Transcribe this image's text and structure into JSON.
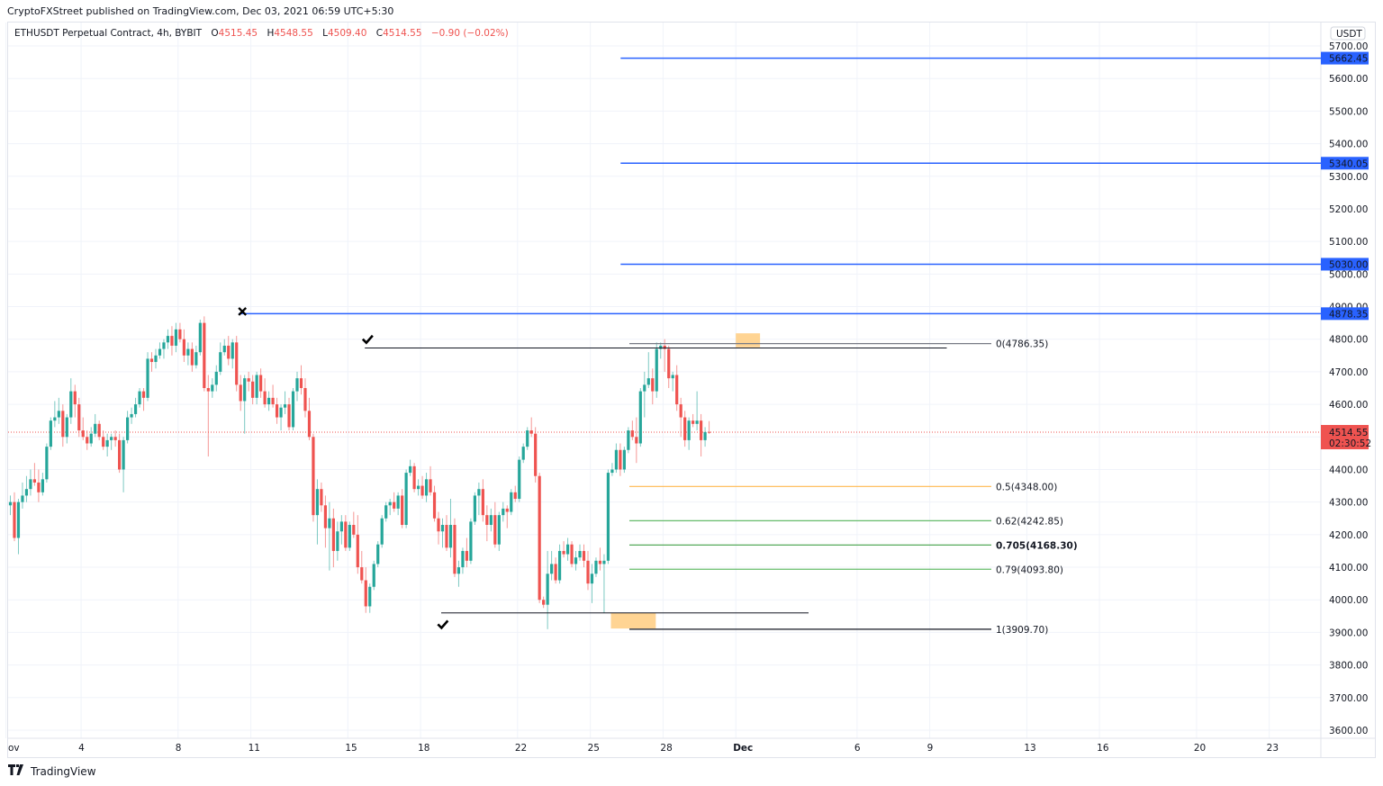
{
  "header": {
    "published": "CryptoFXStreet published on TradingView.com, Dec 03, 2021 06:59 UTC+5:30"
  },
  "legend": {
    "symbol": "ETHUSDT Perpetual Contract, 4h, BYBIT",
    "o_label": "O",
    "o": "4515.45",
    "h_label": "H",
    "h": "4548.55",
    "l_label": "L",
    "l": "4509.40",
    "c_label": "C",
    "c": "4514.55",
    "change": "−0.90 (−0.02%)"
  },
  "footer": {
    "logo_icon": "tradingview-logo-icon",
    "brand": "TradingView"
  },
  "colors": {
    "up": "#26a69a",
    "down": "#ef5350",
    "level": "#2962ff",
    "fib05": "#ffb74d",
    "fibgreen": "#66bb6a",
    "fib705": "#43a047",
    "box": "#ffcc80",
    "grid": "#f0f3fa",
    "axis_text": "#131722"
  },
  "chart_data": {
    "type": "candlestick",
    "title": "ETHUSDT Perpetual Contract, 4h, BYBIT",
    "currency_label": "USDT",
    "ylim": [
      3580,
      5730
    ],
    "y_ticks": [
      3600,
      3700,
      3800,
      3900,
      4000,
      4100,
      4200,
      4300,
      4400,
      4500,
      4600,
      4700,
      4800,
      4900,
      5000,
      5100,
      5200,
      5300,
      5400,
      5500,
      5600,
      5700
    ],
    "x_ticks": [
      {
        "label": "ov",
        "day": -0.1
      },
      {
        "label": "4",
        "day": 3
      },
      {
        "label": "8",
        "day": 7
      },
      {
        "label": "11",
        "day": 10
      },
      {
        "label": "15",
        "day": 14
      },
      {
        "label": "18",
        "day": 17
      },
      {
        "label": "22",
        "day": 21
      },
      {
        "label": "25",
        "day": 24
      },
      {
        "label": "28",
        "day": 27
      },
      {
        "label": "Dec",
        "day": 30,
        "bold": true
      },
      {
        "label": "6",
        "day": 35
      },
      {
        "label": "9",
        "day": 38
      },
      {
        "label": "13",
        "day": 42
      },
      {
        "label": "16",
        "day": 45
      },
      {
        "label": "20",
        "day": 49
      },
      {
        "label": "23",
        "day": 52
      }
    ],
    "last_price": {
      "value": "4514.55",
      "countdown": "02:30:52",
      "price": 4514.55
    },
    "levels": [
      {
        "price": 5662.45,
        "label": "5662.45",
        "from_day": 25.25
      },
      {
        "price": 5340.05,
        "label": "5340.05",
        "from_day": 25.25
      },
      {
        "price": 5030.0,
        "label": "5030.00",
        "from_day": 25.25
      },
      {
        "price": 4878.35,
        "label": "4878.35",
        "from_day": 9.5
      }
    ],
    "fib": [
      {
        "ratio": "0",
        "price": 4786.35,
        "label": "0(4786.35)",
        "color": "#787b86"
      },
      {
        "ratio": "0.5",
        "price": 4348.0,
        "label": "0.5(4348.00)",
        "color": "#ffb74d"
      },
      {
        "ratio": "0.62",
        "price": 4242.85,
        "label": "0.62(4242.85)",
        "color": "#66bb6a"
      },
      {
        "ratio": "0.705",
        "price": 4168.3,
        "label": "0.705(4168.30)",
        "color": "#43a047",
        "bold": true
      },
      {
        "ratio": "0.79",
        "price": 4093.8,
        "label": "0.79(4093.80)",
        "color": "#66bb6a"
      },
      {
        "ratio": "1",
        "price": 3909.7,
        "label": "1(3909.70)",
        "color": "#131722"
      }
    ],
    "swing_lines": [
      {
        "price": 4773,
        "from_day": 14.7,
        "to_day": 38.7
      },
      {
        "price": 3960,
        "from_day": 17.85,
        "to_day": 33.0
      }
    ],
    "markers": [
      {
        "type": "cross",
        "day": 9.65,
        "price": 4885
      },
      {
        "type": "check",
        "day": 14.8,
        "price": 4800
      },
      {
        "type": "check",
        "day": 17.9,
        "price": 3925
      }
    ],
    "boxes": [
      {
        "from_day": 30.0,
        "to_day": 31.0,
        "top": 4818,
        "bottom": 4775
      },
      {
        "from_day": 24.85,
        "to_day": 26.7,
        "top": 3960,
        "bottom": 3912
      }
    ],
    "candles": [
      [
        4290,
        4320,
        4260,
        4300
      ],
      [
        4300,
        4330,
        4180,
        4190
      ],
      [
        4190,
        4310,
        4140,
        4300
      ],
      [
        4300,
        4360,
        4280,
        4320
      ],
      [
        4320,
        4380,
        4300,
        4340
      ],
      [
        4340,
        4400,
        4320,
        4370
      ],
      [
        4370,
        4420,
        4350,
        4360
      ],
      [
        4360,
        4400,
        4300,
        4330
      ],
      [
        4330,
        4390,
        4320,
        4370
      ],
      [
        4370,
        4480,
        4360,
        4470
      ],
      [
        4470,
        4560,
        4460,
        4550
      ],
      [
        4550,
        4610,
        4530,
        4560
      ],
      [
        4560,
        4620,
        4540,
        4580
      ],
      [
        4580,
        4600,
        4470,
        4500
      ],
      [
        4500,
        4570,
        4480,
        4560
      ],
      [
        4560,
        4680,
        4540,
        4640
      ],
      [
        4640,
        4660,
        4560,
        4600
      ],
      [
        4600,
        4620,
        4500,
        4520
      ],
      [
        4520,
        4560,
        4490,
        4500
      ],
      [
        4500,
        4520,
        4460,
        4480
      ],
      [
        4480,
        4530,
        4470,
        4510
      ],
      [
        4510,
        4570,
        4500,
        4540
      ],
      [
        4540,
        4550,
        4490,
        4500
      ],
      [
        4500,
        4520,
        4460,
        4470
      ],
      [
        4470,
        4510,
        4440,
        4490
      ],
      [
        4490,
        4510,
        4460,
        4500
      ],
      [
        4500,
        4520,
        4470,
        4490
      ],
      [
        4490,
        4510,
        4390,
        4400
      ],
      [
        4400,
        4500,
        4330,
        4490
      ],
      [
        4490,
        4580,
        4480,
        4560
      ],
      [
        4560,
        4590,
        4540,
        4570
      ],
      [
        4570,
        4620,
        4560,
        4600
      ],
      [
        4600,
        4650,
        4590,
        4640
      ],
      [
        4640,
        4650,
        4580,
        4620
      ],
      [
        4620,
        4760,
        4610,
        4740
      ],
      [
        4740,
        4760,
        4700,
        4730
      ],
      [
        4730,
        4770,
        4710,
        4750
      ],
      [
        4750,
        4790,
        4740,
        4770
      ],
      [
        4770,
        4800,
        4740,
        4790
      ],
      [
        4790,
        4830,
        4770,
        4810
      ],
      [
        4810,
        4840,
        4750,
        4780
      ],
      [
        4780,
        4850,
        4760,
        4830
      ],
      [
        4830,
        4850,
        4790,
        4800
      ],
      [
        4800,
        4830,
        4730,
        4750
      ],
      [
        4750,
        4790,
        4720,
        4770
      ],
      [
        4770,
        4790,
        4700,
        4720
      ],
      [
        4720,
        4780,
        4710,
        4760
      ],
      [
        4760,
        4860,
        4750,
        4850
      ],
      [
        4850,
        4870,
        4640,
        4650
      ],
      [
        4650,
        4690,
        4440,
        4640
      ],
      [
        4640,
        4680,
        4620,
        4660
      ],
      [
        4660,
        4720,
        4640,
        4700
      ],
      [
        4700,
        4790,
        4690,
        4760
      ],
      [
        4760,
        4800,
        4750,
        4780
      ],
      [
        4780,
        4810,
        4720,
        4740
      ],
      [
        4740,
        4800,
        4710,
        4790
      ],
      [
        4790,
        4810,
        4640,
        4660
      ],
      [
        4660,
        4690,
        4580,
        4610
      ],
      [
        4610,
        4690,
        4510,
        4680
      ],
      [
        4680,
        4700,
        4640,
        4670
      ],
      [
        4670,
        4690,
        4600,
        4620
      ],
      [
        4620,
        4700,
        4600,
        4690
      ],
      [
        4690,
        4710,
        4620,
        4640
      ],
      [
        4640,
        4680,
        4590,
        4600
      ],
      [
        4600,
        4640,
        4580,
        4620
      ],
      [
        4620,
        4660,
        4590,
        4600
      ],
      [
        4600,
        4620,
        4540,
        4560
      ],
      [
        4560,
        4600,
        4520,
        4590
      ],
      [
        4590,
        4640,
        4570,
        4600
      ],
      [
        4600,
        4620,
        4520,
        4530
      ],
      [
        4530,
        4650,
        4520,
        4640
      ],
      [
        4640,
        4700,
        4610,
        4680
      ],
      [
        4680,
        4720,
        4630,
        4650
      ],
      [
        4650,
        4680,
        4560,
        4580
      ],
      [
        4580,
        4620,
        4490,
        4500
      ],
      [
        4500,
        4510,
        4240,
        4260
      ],
      [
        4260,
        4370,
        4170,
        4340
      ],
      [
        4340,
        4360,
        4270,
        4290
      ],
      [
        4290,
        4320,
        4160,
        4220
      ],
      [
        4220,
        4300,
        4090,
        4250
      ],
      [
        4250,
        4280,
        4100,
        4150
      ],
      [
        4150,
        4240,
        4120,
        4210
      ],
      [
        4210,
        4260,
        4170,
        4240
      ],
      [
        4240,
        4260,
        4150,
        4160
      ],
      [
        4160,
        4240,
        4150,
        4230
      ],
      [
        4230,
        4270,
        4190,
        4200
      ],
      [
        4200,
        4260,
        4080,
        4100
      ],
      [
        4100,
        4150,
        4050,
        4060
      ],
      [
        4060,
        4100,
        3960,
        3980
      ],
      [
        3980,
        4050,
        3960,
        4040
      ],
      [
        4040,
        4120,
        4030,
        4110
      ],
      [
        4110,
        4180,
        4100,
        4170
      ],
      [
        4170,
        4260,
        4160,
        4250
      ],
      [
        4250,
        4300,
        4240,
        4290
      ],
      [
        4290,
        4310,
        4260,
        4300
      ],
      [
        4300,
        4330,
        4270,
        4280
      ],
      [
        4280,
        4330,
        4260,
        4320
      ],
      [
        4320,
        4340,
        4220,
        4230
      ],
      [
        4230,
        4400,
        4220,
        4390
      ],
      [
        4390,
        4430,
        4380,
        4410
      ],
      [
        4410,
        4420,
        4330,
        4340
      ],
      [
        4340,
        4370,
        4320,
        4350
      ],
      [
        4350,
        4380,
        4310,
        4320
      ],
      [
        4320,
        4390,
        4300,
        4370
      ],
      [
        4370,
        4410,
        4320,
        4330
      ],
      [
        4330,
        4350,
        4240,
        4250
      ],
      [
        4250,
        4270,
        4170,
        4210
      ],
      [
        4210,
        4250,
        4160,
        4230
      ],
      [
        4230,
        4260,
        4150,
        4160
      ],
      [
        4160,
        4310,
        4130,
        4230
      ],
      [
        4230,
        4250,
        4070,
        4080
      ],
      [
        4080,
        4120,
        4040,
        4100
      ],
      [
        4100,
        4160,
        4080,
        4150
      ],
      [
        4150,
        4190,
        4100,
        4120
      ],
      [
        4120,
        4250,
        4110,
        4240
      ],
      [
        4240,
        4330,
        4230,
        4320
      ],
      [
        4320,
        4360,
        4260,
        4340
      ],
      [
        4340,
        4370,
        4240,
        4260
      ],
      [
        4260,
        4290,
        4180,
        4230
      ],
      [
        4230,
        4280,
        4210,
        4260
      ],
      [
        4260,
        4300,
        4160,
        4170
      ],
      [
        4170,
        4270,
        4150,
        4260
      ],
      [
        4260,
        4300,
        4240,
        4280
      ],
      [
        4280,
        4290,
        4220,
        4270
      ],
      [
        4270,
        4340,
        4260,
        4330
      ],
      [
        4330,
        4350,
        4300,
        4310
      ],
      [
        4310,
        4440,
        4300,
        4430
      ],
      [
        4430,
        4480,
        4420,
        4470
      ],
      [
        4470,
        4530,
        4460,
        4520
      ],
      [
        4520,
        4560,
        4500,
        4510
      ],
      [
        4510,
        4530,
        4360,
        4380
      ],
      [
        4380,
        4390,
        3990,
        4000
      ],
      [
        4000,
        4010,
        3975,
        3985
      ],
      [
        3985,
        4150,
        3910,
        4080
      ],
      [
        4080,
        4150,
        4060,
        4110
      ],
      [
        4110,
        4130,
        4050,
        4060
      ],
      [
        4060,
        4170,
        4050,
        4150
      ],
      [
        4150,
        4180,
        4130,
        4140
      ],
      [
        4140,
        4190,
        4120,
        4170
      ],
      [
        4170,
        4180,
        4100,
        4110
      ],
      [
        4110,
        4150,
        4090,
        4130
      ],
      [
        4130,
        4170,
        4120,
        4150
      ],
      [
        4150,
        4170,
        4100,
        4120
      ],
      [
        4120,
        4150,
        4030,
        4050
      ],
      [
        4050,
        4110,
        3990,
        4080
      ],
      [
        4080,
        4130,
        4070,
        4120
      ],
      [
        4120,
        4160,
        4090,
        4110
      ],
      [
        4110,
        4140,
        3960,
        4120
      ],
      [
        4120,
        4400,
        4110,
        4390
      ],
      [
        4390,
        4420,
        4380,
        4400
      ],
      [
        4400,
        4480,
        4390,
        4460
      ],
      [
        4460,
        4480,
        4380,
        4400
      ],
      [
        4400,
        4470,
        4390,
        4460
      ],
      [
        4460,
        4530,
        4450,
        4520
      ],
      [
        4520,
        4550,
        4490,
        4500
      ],
      [
        4500,
        4560,
        4420,
        4480
      ],
      [
        4480,
        4650,
        4470,
        4640
      ],
      [
        4640,
        4700,
        4560,
        4660
      ],
      [
        4660,
        4760,
        4650,
        4680
      ],
      [
        4680,
        4710,
        4600,
        4640
      ],
      [
        4640,
        4790,
        4620,
        4770
      ],
      [
        4770,
        4790,
        4740,
        4780
      ],
      [
        4780,
        4800,
        4700,
        4770
      ],
      [
        4770,
        4780,
        4650,
        4680
      ],
      [
        4680,
        4700,
        4640,
        4690
      ],
      [
        4690,
        4720,
        4580,
        4600
      ],
      [
        4600,
        4620,
        4500,
        4560
      ],
      [
        4560,
        4580,
        4470,
        4490
      ],
      [
        4490,
        4560,
        4460,
        4550
      ],
      [
        4550,
        4570,
        4530,
        4540
      ],
      [
        4540,
        4640,
        4520,
        4550
      ],
      [
        4550,
        4570,
        4440,
        4490
      ],
      [
        4490,
        4530,
        4470,
        4515
      ],
      [
        4515.45,
        4548.55,
        4509.4,
        4514.55
      ]
    ]
  }
}
